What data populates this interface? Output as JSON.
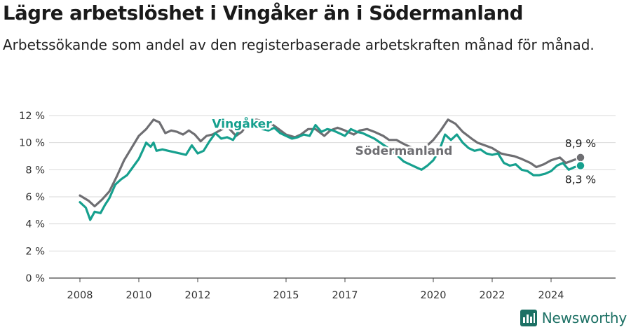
{
  "title": "Lägre arbetslöshet i Vingåker än i Södermanland",
  "subtitle": "Arbetssökande som andel av den registerbaserade arbetskraften månad för månad.",
  "brand": {
    "name": "Newsworthy"
  },
  "colors": {
    "vingaker": "#16a08e",
    "sodermanland": "#6e6e72",
    "grid": "#d9d9d9",
    "axis": "#444444",
    "brand": "#1c7064"
  },
  "chart_data": {
    "type": "line",
    "title": "Lägre arbetslöshet i Vingåker än i Södermanland",
    "xlabel": "",
    "ylabel": "",
    "xlim": [
      2008.0,
      2025.4
    ],
    "ylim": [
      0,
      12
    ],
    "y_ticks": [
      "0 %",
      "2 %",
      "4 %",
      "6 %",
      "8 %",
      "10 %",
      "12 %"
    ],
    "x_ticks": [
      2008,
      2010,
      2012,
      2015,
      2017,
      2020,
      2022,
      2024
    ],
    "grid": true,
    "legend": "inline labels",
    "series": [
      {
        "name": "Södermanland",
        "color": "#6e6e72",
        "end_label": "8,9 %",
        "points": [
          [
            2008.0,
            6.1
          ],
          [
            2008.3,
            5.7
          ],
          [
            2008.5,
            5.3
          ],
          [
            2008.75,
            5.8
          ],
          [
            2009.0,
            6.4
          ],
          [
            2009.25,
            7.5
          ],
          [
            2009.5,
            8.7
          ],
          [
            2009.75,
            9.6
          ],
          [
            2010.0,
            10.5
          ],
          [
            2010.25,
            11.0
          ],
          [
            2010.5,
            11.7
          ],
          [
            2010.7,
            11.5
          ],
          [
            2010.9,
            10.7
          ],
          [
            2011.1,
            10.9
          ],
          [
            2011.3,
            10.8
          ],
          [
            2011.5,
            10.6
          ],
          [
            2011.7,
            10.9
          ],
          [
            2011.9,
            10.6
          ],
          [
            2012.1,
            10.1
          ],
          [
            2012.3,
            10.5
          ],
          [
            2012.5,
            10.6
          ],
          [
            2012.75,
            10.9
          ],
          [
            2013.0,
            11.2
          ],
          [
            2013.3,
            10.5
          ],
          [
            2013.5,
            10.8
          ],
          [
            2013.75,
            11.6
          ],
          [
            2014.0,
            11.7
          ],
          [
            2014.3,
            11.5
          ],
          [
            2014.5,
            11.4
          ],
          [
            2014.75,
            11.0
          ],
          [
            2015.0,
            10.6
          ],
          [
            2015.3,
            10.4
          ],
          [
            2015.5,
            10.6
          ],
          [
            2015.75,
            11.0
          ],
          [
            2016.0,
            11.0
          ],
          [
            2016.3,
            10.5
          ],
          [
            2016.5,
            10.9
          ],
          [
            2016.75,
            11.1
          ],
          [
            2017.0,
            10.9
          ],
          [
            2017.3,
            10.6
          ],
          [
            2017.5,
            10.9
          ],
          [
            2017.75,
            11.0
          ],
          [
            2018.0,
            10.8
          ],
          [
            2018.3,
            10.5
          ],
          [
            2018.5,
            10.2
          ],
          [
            2018.75,
            10.2
          ],
          [
            2019.0,
            9.9
          ],
          [
            2019.3,
            9.6
          ],
          [
            2019.5,
            9.5
          ],
          [
            2019.75,
            9.7
          ],
          [
            2020.0,
            10.2
          ],
          [
            2020.25,
            10.9
          ],
          [
            2020.5,
            11.7
          ],
          [
            2020.75,
            11.4
          ],
          [
            2021.0,
            10.8
          ],
          [
            2021.3,
            10.3
          ],
          [
            2021.5,
            10.0
          ],
          [
            2021.75,
            9.8
          ],
          [
            2022.0,
            9.6
          ],
          [
            2022.3,
            9.2
          ],
          [
            2022.5,
            9.1
          ],
          [
            2022.75,
            9.0
          ],
          [
            2023.0,
            8.8
          ],
          [
            2023.3,
            8.5
          ],
          [
            2023.5,
            8.2
          ],
          [
            2023.75,
            8.4
          ],
          [
            2024.0,
            8.7
          ],
          [
            2024.3,
            8.9
          ],
          [
            2024.5,
            8.5
          ],
          [
            2024.75,
            8.7
          ],
          [
            2025.0,
            8.9
          ]
        ]
      },
      {
        "name": "Vingåker",
        "color": "#16a08e",
        "end_label": "8,3 %",
        "points": [
          [
            2008.0,
            5.6
          ],
          [
            2008.2,
            5.2
          ],
          [
            2008.35,
            4.3
          ],
          [
            2008.5,
            4.9
          ],
          [
            2008.7,
            4.8
          ],
          [
            2008.85,
            5.4
          ],
          [
            2009.0,
            5.9
          ],
          [
            2009.2,
            6.9
          ],
          [
            2009.4,
            7.3
          ],
          [
            2009.6,
            7.6
          ],
          [
            2009.8,
            8.2
          ],
          [
            2010.0,
            8.8
          ],
          [
            2010.15,
            9.5
          ],
          [
            2010.25,
            10.0
          ],
          [
            2010.4,
            9.7
          ],
          [
            2010.5,
            10.0
          ],
          [
            2010.6,
            9.4
          ],
          [
            2010.8,
            9.5
          ],
          [
            2011.0,
            9.4
          ],
          [
            2011.2,
            9.3
          ],
          [
            2011.4,
            9.2
          ],
          [
            2011.6,
            9.1
          ],
          [
            2011.8,
            9.8
          ],
          [
            2012.0,
            9.2
          ],
          [
            2012.2,
            9.4
          ],
          [
            2012.4,
            10.1
          ],
          [
            2012.6,
            10.7
          ],
          [
            2012.8,
            10.3
          ],
          [
            2013.0,
            10.4
          ],
          [
            2013.2,
            10.2
          ],
          [
            2013.4,
            10.9
          ],
          [
            2013.6,
            11.3
          ],
          [
            2013.8,
            11.6
          ],
          [
            2014.0,
            11.5
          ],
          [
            2014.2,
            11.0
          ],
          [
            2014.4,
            10.9
          ],
          [
            2014.6,
            11.1
          ],
          [
            2014.8,
            10.7
          ],
          [
            2015.0,
            10.5
          ],
          [
            2015.2,
            10.3
          ],
          [
            2015.4,
            10.4
          ],
          [
            2015.6,
            10.6
          ],
          [
            2015.8,
            10.5
          ],
          [
            2016.0,
            11.3
          ],
          [
            2016.2,
            10.8
          ],
          [
            2016.4,
            11.0
          ],
          [
            2016.6,
            10.9
          ],
          [
            2016.8,
            10.7
          ],
          [
            2017.0,
            10.5
          ],
          [
            2017.2,
            11.0
          ],
          [
            2017.4,
            10.8
          ],
          [
            2017.6,
            10.7
          ],
          [
            2017.8,
            10.5
          ],
          [
            2018.0,
            10.3
          ],
          [
            2018.2,
            10.0
          ],
          [
            2018.4,
            9.7
          ],
          [
            2018.6,
            9.4
          ],
          [
            2018.8,
            9.0
          ],
          [
            2019.0,
            8.6
          ],
          [
            2019.2,
            8.4
          ],
          [
            2019.4,
            8.2
          ],
          [
            2019.6,
            8.0
          ],
          [
            2019.8,
            8.3
          ],
          [
            2020.0,
            8.7
          ],
          [
            2020.2,
            9.4
          ],
          [
            2020.4,
            10.6
          ],
          [
            2020.6,
            10.2
          ],
          [
            2020.8,
            10.6
          ],
          [
            2021.0,
            10.0
          ],
          [
            2021.2,
            9.6
          ],
          [
            2021.4,
            9.4
          ],
          [
            2021.6,
            9.5
          ],
          [
            2021.8,
            9.2
          ],
          [
            2022.0,
            9.1
          ],
          [
            2022.2,
            9.2
          ],
          [
            2022.4,
            8.5
          ],
          [
            2022.6,
            8.3
          ],
          [
            2022.8,
            8.4
          ],
          [
            2023.0,
            8.0
          ],
          [
            2023.2,
            7.9
          ],
          [
            2023.4,
            7.6
          ],
          [
            2023.6,
            7.6
          ],
          [
            2023.8,
            7.7
          ],
          [
            2024.0,
            7.9
          ],
          [
            2024.2,
            8.3
          ],
          [
            2024.4,
            8.5
          ],
          [
            2024.6,
            8.0
          ],
          [
            2024.8,
            8.2
          ],
          [
            2025.0,
            8.3
          ]
        ]
      }
    ],
    "labels_shown": [
      {
        "text": "Vingåker",
        "series": "Vingåker",
        "x": 2013.5,
        "y": 11.1
      },
      {
        "text": "Södermanland",
        "series": "Södermanland",
        "x": 2019.0,
        "y": 9.1
      }
    ]
  }
}
